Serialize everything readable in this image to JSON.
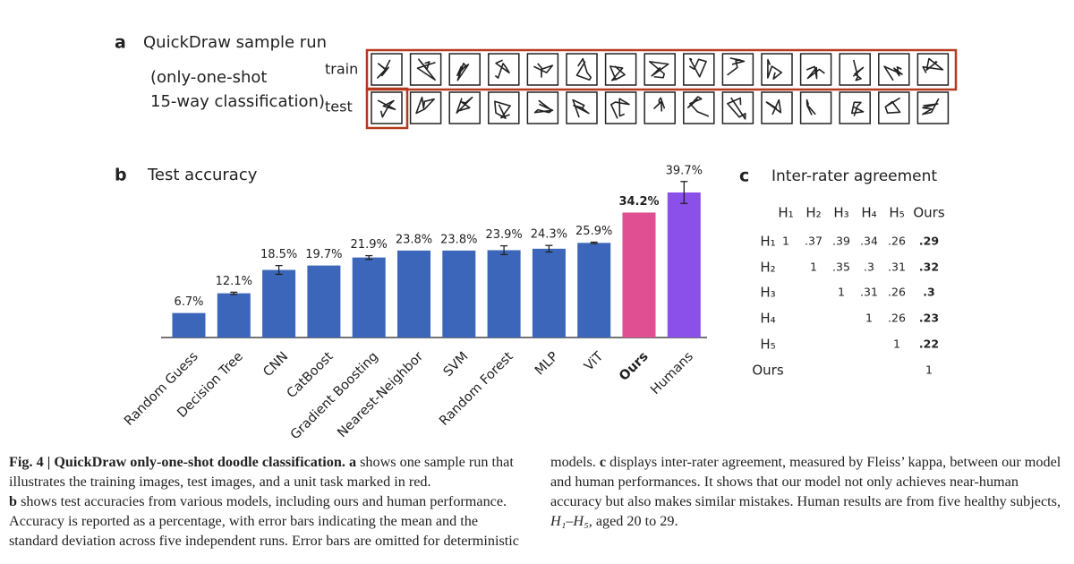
{
  "panel_a": {
    "label": "a",
    "title": "QuickDraw sample run",
    "subtitle_lines": [
      "(only-one-shot",
      "15-way classification)"
    ],
    "row_labels": [
      "train",
      "test"
    ]
  },
  "chart_data": {
    "type": "bar",
    "label": "b",
    "title": "Test accuracy",
    "categories": [
      "Random Guess",
      "Decision Tree",
      "CNN",
      "CatBoost",
      "Gradient Boosting",
      "Nearest-Neighbor",
      "SVM",
      "Random Forest",
      "MLP",
      "ViT",
      "Ours",
      "Humans"
    ],
    "values": [
      6.7,
      12.1,
      18.5,
      19.7,
      21.9,
      23.8,
      23.8,
      23.9,
      24.3,
      25.9,
      34.2,
      39.7
    ],
    "value_labels": [
      "6.7%",
      "12.1%",
      "18.5%",
      "19.7%",
      "21.9%",
      "23.8%",
      "23.8%",
      "23.9%",
      "24.3%",
      "25.9%",
      "34.2%",
      "39.7%"
    ],
    "errors": [
      null,
      0.3,
      1.2,
      null,
      0.5,
      null,
      null,
      1.2,
      0.9,
      0.2,
      null,
      3.0
    ],
    "colors": [
      "#3b66b9",
      "#3b66b9",
      "#3b66b9",
      "#3b66b9",
      "#3b66b9",
      "#3b66b9",
      "#3b66b9",
      "#3b66b9",
      "#3b66b9",
      "#3b66b9",
      "#df4f91",
      "#8b4fea"
    ]
  },
  "table": {
    "label": "c",
    "title": "Inter-rater agreement",
    "columns": [
      "H₁",
      "H₂",
      "H₃",
      "H₄",
      "H₅",
      "Ours"
    ],
    "rows": [
      {
        "label": "H₁",
        "cells": [
          "1",
          ".37",
          ".39",
          ".34",
          ".26",
          ".29"
        ]
      },
      {
        "label": "H₂",
        "cells": [
          null,
          "1",
          ".35",
          ".3",
          ".31",
          ".32"
        ]
      },
      {
        "label": "H₃",
        "cells": [
          null,
          null,
          "1",
          ".31",
          ".26",
          ".3"
        ]
      },
      {
        "label": "H₄",
        "cells": [
          null,
          null,
          null,
          "1",
          ".26",
          ".23"
        ]
      },
      {
        "label": "H₅",
        "cells": [
          null,
          null,
          null,
          null,
          "1",
          ".22"
        ]
      },
      {
        "label": "Ours",
        "cells": [
          null,
          null,
          null,
          null,
          null,
          "1"
        ]
      }
    ]
  },
  "caption": {
    "title": "Fig. 4 | QuickDraw only-one-shot doodle classification.",
    "a": "a",
    "a_text": " shows one sample run that illustrates the training images, test images, and a unit task marked in red.",
    "b": "b",
    "b_text": " shows test accuracies from various models, including ours and human performance. Accuracy is reported as a percentage, with error bars indicating the mean and the standard deviation across five independent runs. Error bars are omitted for deterministic models. ",
    "c": "c",
    "c_text": " displays inter-rater agreement, measured by Fleiss’ kappa, between our model and human performances. It shows that our model not only achieves near-human accuracy but also makes similar mistakes. Human results are from five healthy subjects, ",
    "subjects": "H₁–H₅",
    "end": ", aged 20 to 29."
  }
}
